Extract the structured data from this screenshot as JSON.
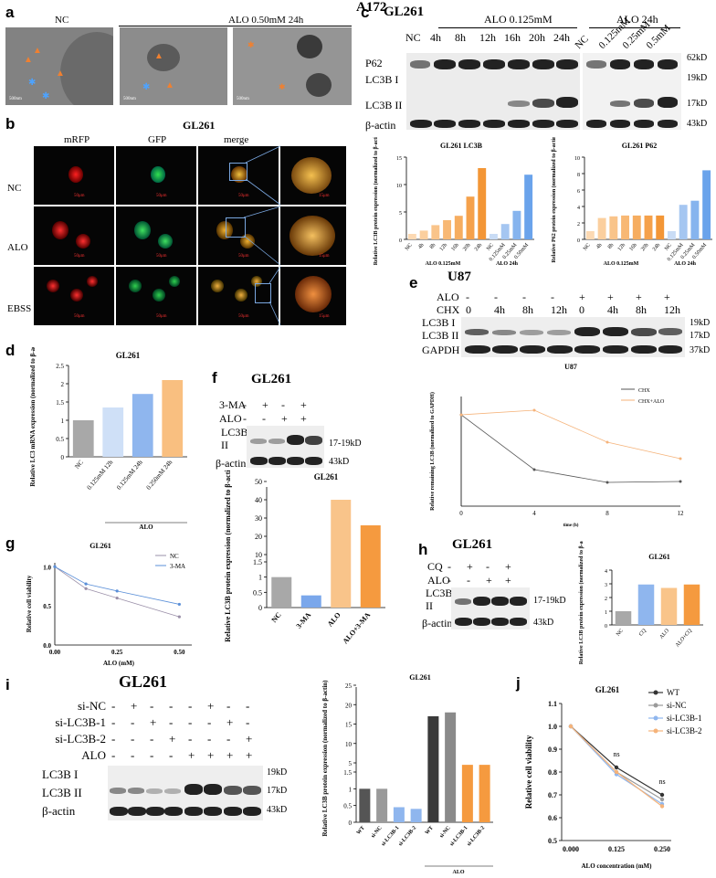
{
  "panel_labels": {
    "a": "a",
    "b": "b",
    "c": "c",
    "d": "d",
    "e": "e",
    "f": "f",
    "g": "g",
    "h": "h",
    "i": "i",
    "j": "j"
  },
  "a": {
    "title": "A172",
    "nc": "NC",
    "alo": "ALO 0.50mM 24h",
    "scale": "500nm"
  },
  "b": {
    "title": "GL261",
    "cols": [
      "mRFP",
      "GFP",
      "merge"
    ],
    "rows": [
      "NC",
      "ALO",
      "EBSS"
    ],
    "scale50": "50μm",
    "scale15": "15μm"
  },
  "c": {
    "title": "GL261",
    "group1": "ALO 0.125mM",
    "group2": "ALO 24h",
    "lanes1": [
      "NC",
      "4h",
      "8h",
      "12h",
      "16h",
      "20h",
      "24h"
    ],
    "lanes2": [
      "NC",
      "0.125mM",
      "0.25mM",
      "0.5mM"
    ],
    "rows": [
      "P62",
      "LC3B I",
      "LC3B II",
      "β-actin"
    ],
    "kd": [
      "62kD",
      "19kD",
      "17kD",
      "43kD"
    ],
    "chart1_title": "GL261 LC3B",
    "chart2_title": "GL261 P62",
    "ylabel1": "Relative LC3B protein expression (normalized to β-actin)",
    "ylabel2": "Relative P62 protein expression (normalized to β-actin)",
    "xgroup1": "ALO 0.125mM",
    "xgroup2": "ALO 24h"
  },
  "d": {
    "title": "GL261",
    "ylabel": "Relative LC3 mRNA expression (normalized to β-actin)",
    "group": "ALO"
  },
  "e": {
    "title": "U87",
    "alo_label": "ALO",
    "chx_label": "CHX",
    "alo_row": [
      "-",
      "-",
      "-",
      "-",
      "+",
      "+",
      "+",
      "+"
    ],
    "chx_row": [
      "0",
      "4h",
      "8h",
      "12h",
      "0",
      "4h",
      "8h",
      "12h"
    ],
    "rows": [
      "LC3B I",
      "LC3B II",
      "GAPDH"
    ],
    "kd": [
      "19kD",
      "17kD",
      "37kD"
    ],
    "chart_title": "U87",
    "xlabel": "time (h)",
    "ylabel": "Relative remaining LC3B (normalized to GAPDH)"
  },
  "f": {
    "title": "GL261",
    "row1_label": "3-MA",
    "row2_label": "ALO",
    "row1": [
      "-",
      "+",
      "-",
      "+"
    ],
    "row2": [
      "-",
      "-",
      "+",
      "+"
    ],
    "blot_rows": [
      "LC3B I/ II",
      "β-actin"
    ],
    "kd": [
      "17-19kD",
      "43kD"
    ],
    "chart_title": "GL261",
    "ylabel": "Relative LC3B protein expression (normalized to β-actin)"
  },
  "g": {
    "title": "GL261",
    "xlabel": "ALO (mM)",
    "ylabel": "Relative cell viability"
  },
  "h": {
    "title": "GL261",
    "row1_label": "CQ",
    "row2_label": "ALO",
    "row1": [
      "-",
      "+",
      "-",
      "+"
    ],
    "row2": [
      "-",
      "-",
      "+",
      "+"
    ],
    "blot_rows": [
      "LC3B I/ II",
      "β-actin"
    ],
    "kd": [
      "17-19kD",
      "43kD"
    ],
    "chart_title": "GL261",
    "ylabel": "Relative LC3B protein expression (normalized to β-actin)"
  },
  "i": {
    "title": "GL261",
    "row_labels": [
      "si-NC",
      "si-LC3B-1",
      "si-LC3B-2",
      "ALO"
    ],
    "rows": [
      [
        "-",
        "+",
        "-",
        "-",
        "-",
        "+",
        "-",
        "-"
      ],
      [
        "-",
        "-",
        "+",
        "-",
        "-",
        "-",
        "+",
        "-"
      ],
      [
        "-",
        "-",
        "-",
        "+",
        "-",
        "-",
        "-",
        "+"
      ],
      [
        "-",
        "-",
        "-",
        "-",
        "+",
        "+",
        "+",
        "+"
      ]
    ],
    "blot_rows": [
      "LC3B I",
      "LC3B II",
      "β-actin"
    ],
    "kd": [
      "19kD",
      "17kD",
      "43kD"
    ],
    "chart_title": "GL261",
    "ylabel": "Relative LC3B protein expression (normalized to β-actin)",
    "group": "ALO"
  },
  "j": {
    "title": "GL261",
    "xlabel": "ALO concentration (mM)",
    "ylabel": "Relative cell viability",
    "ns": "ns"
  },
  "chart_data": [
    {
      "id": "c1",
      "type": "bar",
      "title": "GL261 LC3B",
      "categories": [
        "NC",
        "4h",
        "8h",
        "12h",
        "16h",
        "20h",
        "24h",
        "NC",
        "0.125mM",
        "0.25mM",
        "0.50mM"
      ],
      "values": [
        1.0,
        1.6,
        2.6,
        3.5,
        4.3,
        7.8,
        13.0,
        1.0,
        2.8,
        5.2,
        11.8
      ],
      "colors": [
        "#fcd9b3",
        "#fbcf9e",
        "#f9c48a",
        "#f8b874",
        "#f6ad60",
        "#f5a14b",
        "#f39636",
        "#c9dcf5",
        "#a5c6f1",
        "#86b4ee",
        "#6aa3eb"
      ],
      "ylabel": "Relative LC3B protein expression (normalized to β-actin)",
      "ylim": [
        0,
        15
      ],
      "yticks": [
        0,
        5,
        10,
        15
      ]
    },
    {
      "id": "c2",
      "type": "bar",
      "title": "GL261 P62",
      "categories": [
        "NC",
        "4h",
        "8h",
        "12h",
        "16h",
        "20h",
        "24h",
        "NC",
        "0.125mM",
        "0.25mM",
        "0.50mM"
      ],
      "values": [
        1.0,
        2.6,
        2.8,
        2.9,
        2.9,
        2.9,
        2.9,
        1.0,
        4.2,
        4.7,
        8.4
      ],
      "colors": [
        "#fcd9b3",
        "#fbcf9e",
        "#f9c48a",
        "#f8b874",
        "#f6ad60",
        "#f5a14b",
        "#f39636",
        "#c9dcf5",
        "#a5c6f1",
        "#86b4ee",
        "#6aa3eb"
      ],
      "ylabel": "Relative P62 protein expression (normalized to β-actin)",
      "ylim": [
        0,
        10
      ],
      "yticks": [
        0,
        2,
        4,
        6,
        8,
        10
      ]
    },
    {
      "id": "d",
      "type": "bar",
      "title": "GL261",
      "categories": [
        "NC",
        "0.125mM 12h",
        "0.125mM 24h",
        "0.250mM 24h"
      ],
      "values": [
        1.0,
        1.35,
        1.72,
        2.1
      ],
      "colors": [
        "#a8a8a8",
        "#cfe0f7",
        "#8fb6ee",
        "#f9bf80"
      ],
      "ylabel": "Relative LC3 mRNA expression (normalized to β-actin)",
      "ylim": [
        0,
        2.5
      ],
      "yticks": [
        0,
        0.5,
        1.0,
        1.5,
        2.0,
        2.5
      ]
    },
    {
      "id": "e",
      "type": "line",
      "title": "U87",
      "x": [
        0,
        4,
        8,
        12
      ],
      "series": [
        {
          "name": "CHX",
          "values": [
            1.0,
            0.4,
            0.26,
            0.27
          ],
          "color": "#555555"
        },
        {
          "name": "CHX+ALO",
          "values": [
            1.0,
            1.05,
            0.7,
            0.52
          ],
          "color": "#f5b37a"
        }
      ],
      "xlabel": "time (h)",
      "ylabel": "Relative remaining LC3B (normalized to GAPDH)",
      "ylim": [
        0,
        1.2
      ],
      "xticks": [
        0,
        4,
        8,
        12
      ]
    },
    {
      "id": "f",
      "type": "bar",
      "title": "GL261",
      "categories": [
        "NC",
        "3-MA",
        "ALO",
        "ALO+3-MA"
      ],
      "values": [
        1.0,
        0.4,
        40,
        26
      ],
      "colors": [
        "#a8a8a8",
        "#7aa7eb",
        "#f9c48a",
        "#f59a3f"
      ],
      "ylabel": "Relative LC3B protein expression (normalized to β-actin)",
      "yticks": [
        0.0,
        0.5,
        1.0,
        1.5,
        10,
        20,
        30,
        40,
        50
      ]
    },
    {
      "id": "g",
      "type": "line",
      "title": "GL261",
      "x": [
        0,
        0.125,
        0.25,
        0.5
      ],
      "series": [
        {
          "name": "NC",
          "values": [
            1.0,
            0.72,
            0.6,
            0.36
          ],
          "color": "#9a8fa8"
        },
        {
          "name": "3-MA",
          "values": [
            1.0,
            0.78,
            0.69,
            0.52
          ],
          "color": "#5a8fd8"
        }
      ],
      "xlabel": "ALO (mM)",
      "ylabel": "Relative cell viability",
      "xlim": [
        0,
        0.5
      ],
      "ylim": [
        0,
        1.0
      ],
      "xticks": [
        0.0,
        0.25,
        0.5
      ],
      "yticks": [
        0.0,
        0.5,
        1.0
      ]
    },
    {
      "id": "h",
      "type": "bar",
      "title": "GL261",
      "categories": [
        "NC",
        "CQ",
        "ALO",
        "ALO+CQ"
      ],
      "values": [
        1.0,
        2.95,
        2.7,
        2.95
      ],
      "colors": [
        "#a8a8a8",
        "#8fb6ee",
        "#f9c48a",
        "#f59a3f"
      ],
      "ylabel": "Relative LC3B protein expression (normalized to β-actin)",
      "ylim": [
        0,
        4
      ],
      "yticks": [
        0,
        1,
        2,
        3,
        4
      ]
    },
    {
      "id": "i",
      "type": "bar",
      "title": "GL261",
      "categories": [
        "WT",
        "si-NC",
        "si-LC3B-1",
        "si-LC3B-2",
        "WT",
        "si-NC",
        "si-LC3B-1",
        "si-LC3B-2"
      ],
      "values": [
        1.0,
        1.0,
        0.45,
        0.4,
        17,
        18,
        4.5,
        4.5
      ],
      "colors": [
        "#555555",
        "#9a9a9a",
        "#8fb6ee",
        "#8fb6ee",
        "#3a3a3a",
        "#8a8a8a",
        "#f59a3f",
        "#f59a3f"
      ],
      "ylabel": "Relative LC3B protein expression (normalized to β-actin)",
      "yticks": [
        0.0,
        0.5,
        1.0,
        1.5,
        5,
        10,
        15,
        20,
        25
      ]
    },
    {
      "id": "j",
      "type": "line",
      "title": "GL261",
      "x": [
        0.0,
        0.125,
        0.25
      ],
      "series": [
        {
          "name": "WT",
          "values": [
            1.0,
            0.82,
            0.7
          ],
          "color": "#333333"
        },
        {
          "name": "si-NC",
          "values": [
            1.0,
            0.8,
            0.68
          ],
          "color": "#9a9a9a"
        },
        {
          "name": "si-LC3B-1",
          "values": [
            1.0,
            0.79,
            0.66
          ],
          "color": "#8fb6ee"
        },
        {
          "name": "si-LC3B-2",
          "values": [
            1.0,
            0.8,
            0.65
          ],
          "color": "#f5b37a"
        }
      ],
      "xlabel": "ALO concentration (mM)",
      "ylabel": "Relative cell viability",
      "ylim": [
        0.5,
        1.1
      ],
      "yticks": [
        0.5,
        0.6,
        0.7,
        0.8,
        0.9,
        1.0,
        1.1
      ],
      "xticks": [
        0.0,
        0.125,
        0.25
      ]
    }
  ]
}
